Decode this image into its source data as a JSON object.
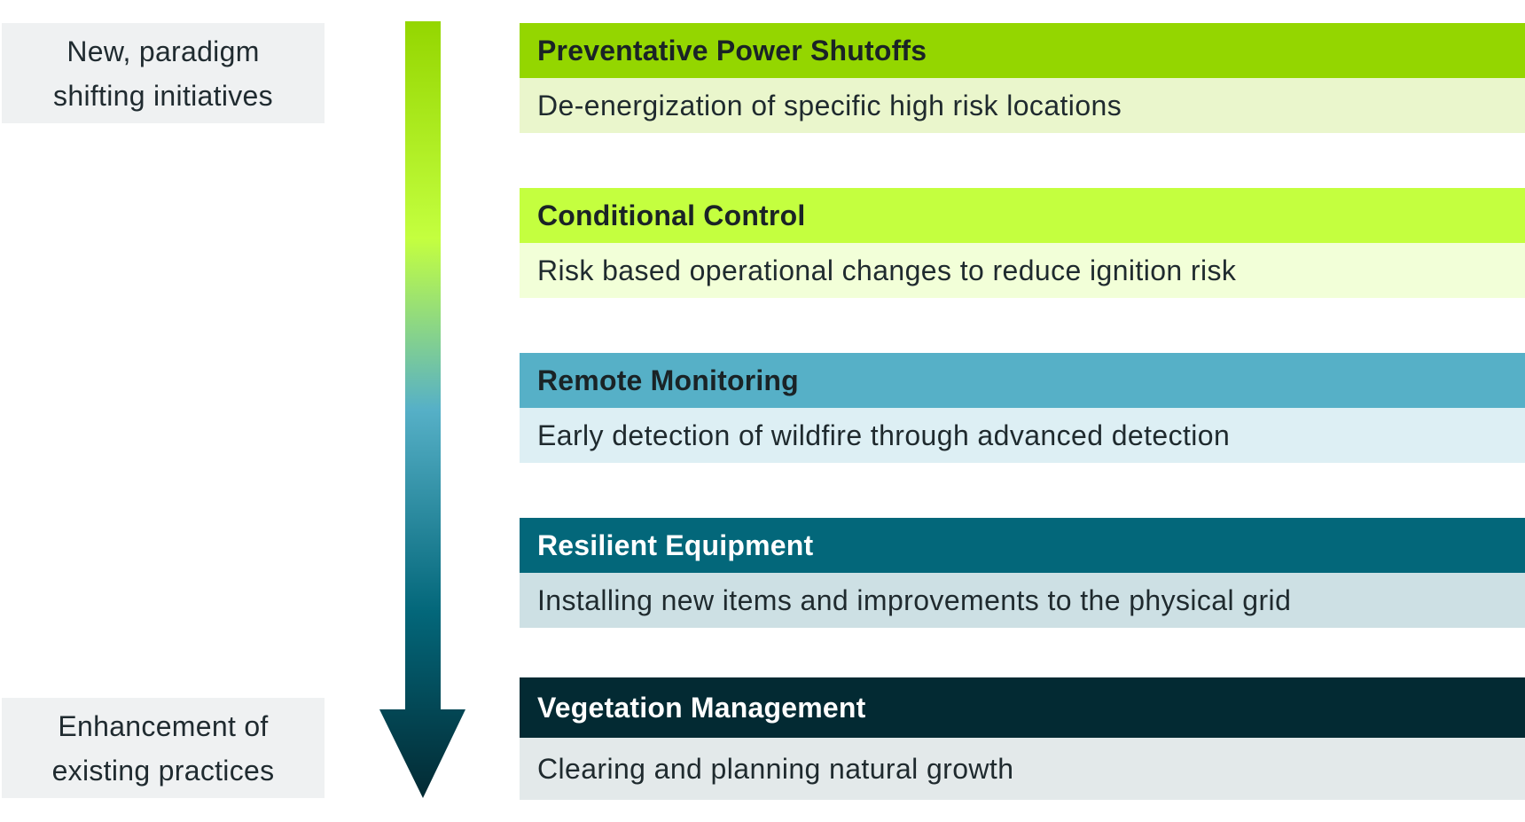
{
  "labels": {
    "top": "New, paradigm\nshifting initiatives",
    "bottom": "Enhancement of\nexisting practices"
  },
  "tiers": [
    {
      "title": "Preventative Power Shutoffs",
      "description": "De-energization of specific high risk locations",
      "head_color": "#94d600",
      "desc_color": "#eaf6cc",
      "title_color": "#1a2326"
    },
    {
      "title": "Conditional Control",
      "description": "Risk based operational changes to reduce ignition risk",
      "head_color": "#c4ff3f",
      "desc_color": "#f2ffd8",
      "title_color": "#1a2326"
    },
    {
      "title": "Remote Monitoring",
      "description": "Early detection of wildfire through advanced detection",
      "head_color": "#56b0c7",
      "desc_color": "#ddeff4",
      "title_color": "#1a2326"
    },
    {
      "title": "Resilient Equipment",
      "description": "Installing new items and improvements to the physical grid",
      "head_color": "#03677a",
      "desc_color": "#cde0e4",
      "title_color": "#ffffff"
    },
    {
      "title": "Vegetation Management",
      "description": "Clearing and planning natural growth",
      "head_color": "#032a33",
      "desc_color": "#e3e9ea",
      "title_color": "#ffffff"
    }
  ],
  "arrow": {
    "gradient": [
      "#94d600",
      "#c4ff3f",
      "#56b0c7",
      "#03677a",
      "#032a33"
    ]
  }
}
